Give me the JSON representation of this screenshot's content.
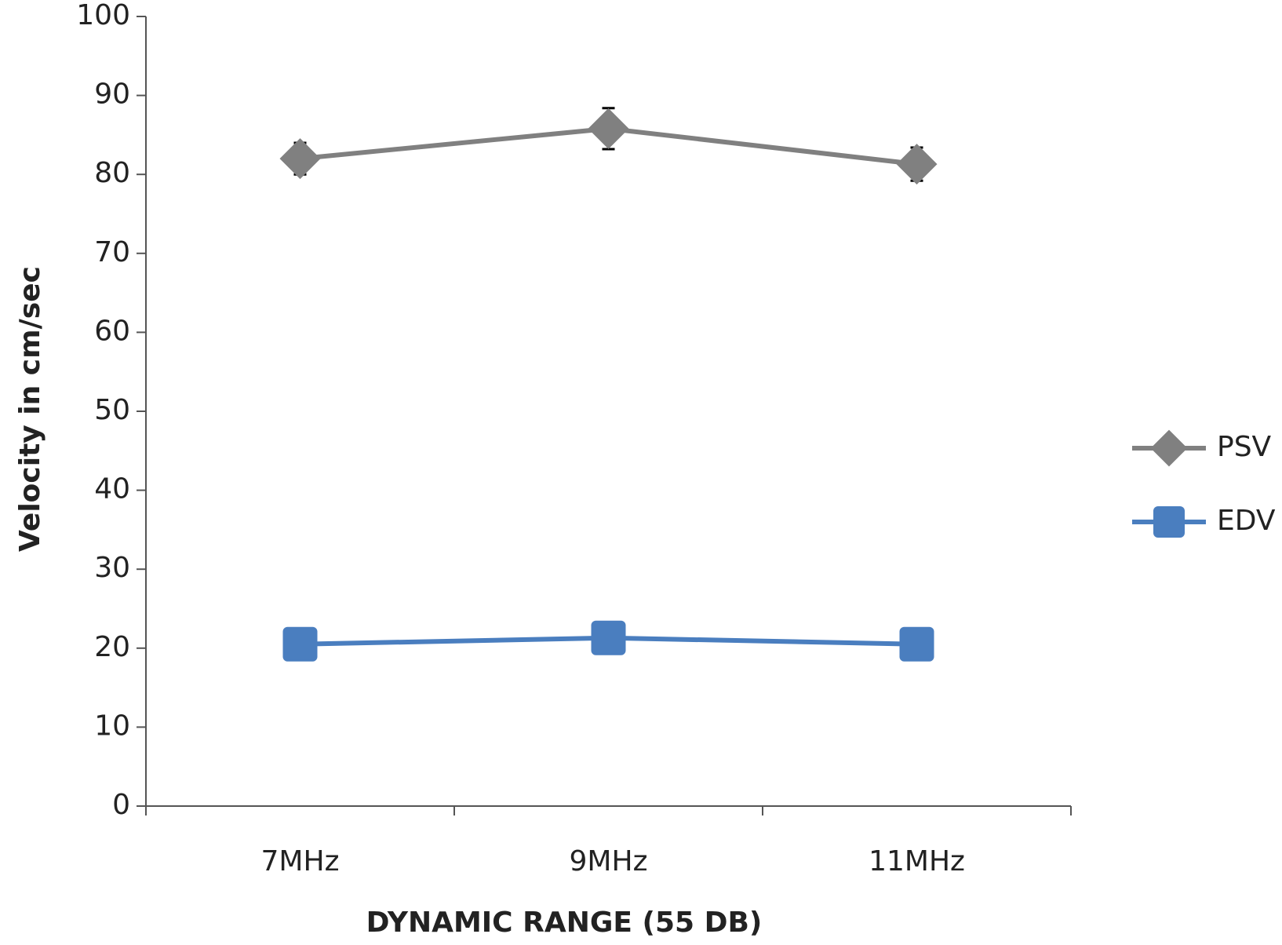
{
  "chart_data": {
    "type": "line",
    "categories": [
      "7MHz",
      "9MHz",
      "11MHz"
    ],
    "x_label": "DYNAMIC RANGE (55 DB)",
    "y_label": "Velocity in cm/sec",
    "ylim": [
      0,
      100
    ],
    "yticks": [
      0,
      10,
      20,
      30,
      40,
      50,
      60,
      70,
      80,
      90,
      100
    ],
    "legend": "right",
    "series": [
      {
        "name": "PSV",
        "color": "#808080",
        "marker": "diamond",
        "values": [
          82,
          85.8,
          81.3
        ],
        "errors": [
          2,
          2.6,
          2.1
        ]
      },
      {
        "name": "EDV",
        "color": "#4a7ebf",
        "marker": "square",
        "values": [
          20.5,
          21.3,
          20.5
        ]
      }
    ]
  }
}
